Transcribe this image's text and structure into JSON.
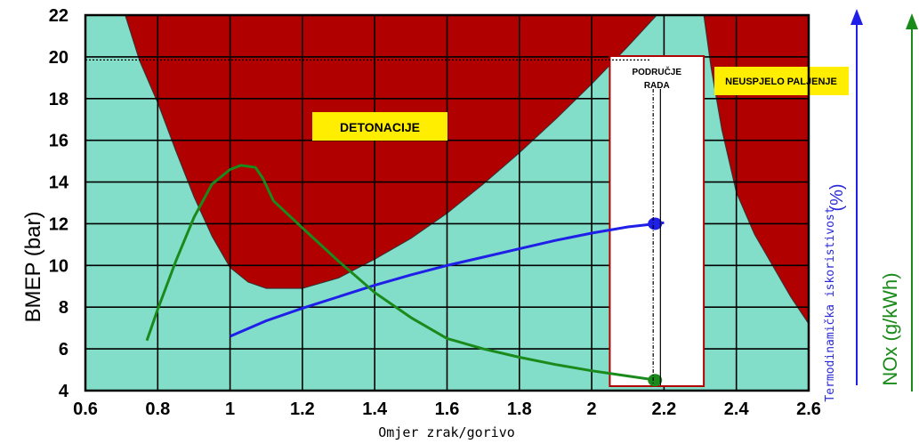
{
  "chart_data": {
    "type": "line",
    "xlabel": "Omjer zrak/gorivo",
    "ylabel": "BMEP (bar)",
    "right_labels": {
      "efficiency": "Termodinamička iskoristivost",
      "efficiency_unit": "(%)",
      "nox": "NOx (g/kWh)"
    },
    "xlim": [
      0.6,
      2.6
    ],
    "ylim": [
      4,
      22
    ],
    "x_ticks": [
      "0.6",
      "0.8",
      "1",
      "1.2",
      "1.4",
      "1.6",
      "1.8",
      "2",
      "2.2",
      "2.4",
      "2.6"
    ],
    "y_ticks": [
      "4",
      "6",
      "8",
      "10",
      "12",
      "14",
      "16",
      "18",
      "20",
      "22"
    ],
    "grid": true,
    "regions": {
      "knock": {
        "label": "DETONACIJE"
      },
      "misfire": {
        "label": "NEUSPJELO PALJENJE"
      },
      "operating": {
        "label_line1": "PODRUČJE",
        "label_line2": "RADA",
        "x_range": [
          2.05,
          2.31
        ]
      }
    },
    "knock_boundary": {
      "x": [
        0.71,
        0.75,
        0.8,
        0.85,
        0.9,
        0.95,
        1.0,
        1.05,
        1.1,
        1.2,
        1.3,
        1.4,
        1.5,
        1.6,
        1.7,
        1.8,
        1.9,
        2.0,
        2.1,
        2.18
      ],
      "y": [
        22,
        19.8,
        17.8,
        15.5,
        13.3,
        11.4,
        9.9,
        9.2,
        8.9,
        8.9,
        9.4,
        10.3,
        11.3,
        12.5,
        13.9,
        15.4,
        17.0,
        18.7,
        20.5,
        22
      ]
    },
    "misfire_boundary": {
      "x": [
        2.31,
        2.33,
        2.36,
        2.4,
        2.45,
        2.5,
        2.55,
        2.6
      ],
      "y": [
        22,
        19.5,
        16.5,
        13.5,
        11.5,
        10.0,
        8.5,
        7.2
      ]
    },
    "series": [
      {
        "name": "Termodinamička iskoristivost",
        "color": "#1f1fe8",
        "x": [
          1.0,
          1.1,
          1.2,
          1.3,
          1.4,
          1.5,
          1.6,
          1.7,
          1.8,
          1.9,
          2.0,
          2.1,
          2.18,
          2.2
        ],
        "y": [
          6.6,
          7.35,
          7.95,
          8.5,
          9.05,
          9.55,
          10.0,
          10.4,
          10.8,
          11.2,
          11.55,
          11.85,
          12.0,
          12.05
        ],
        "marker_point": [
          2.175,
          12.0
        ]
      },
      {
        "name": "NOx (g/kWh)",
        "color": "#1a8a1a",
        "x": [
          0.77,
          0.8,
          0.85,
          0.9,
          0.95,
          1.0,
          1.03,
          1.07,
          1.09,
          1.12,
          1.2,
          1.3,
          1.4,
          1.5,
          1.6,
          1.7,
          1.8,
          1.9,
          2.0,
          2.1,
          2.18
        ],
        "y": [
          6.4,
          7.9,
          10.2,
          12.3,
          13.9,
          14.6,
          14.8,
          14.7,
          14.2,
          13.1,
          11.8,
          10.2,
          8.7,
          7.5,
          6.5,
          6.0,
          5.6,
          5.25,
          4.95,
          4.7,
          4.5
        ],
        "marker_point": [
          2.175,
          4.5
        ]
      }
    ],
    "reference_lines": {
      "bmep_y": 19.85,
      "operating_x": [
        2.17,
        2.19
      ]
    },
    "colors": {
      "background": "#82ddc9",
      "knock": "#b00000",
      "label_box": "#ffee00",
      "operating_box": "#b00000",
      "grid": "#000000"
    }
  }
}
